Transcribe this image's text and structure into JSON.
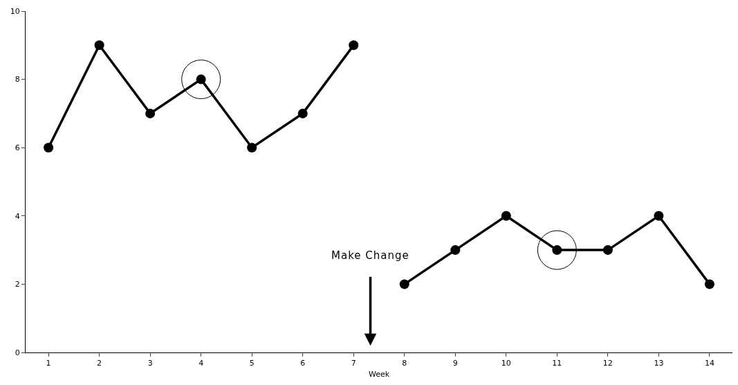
{
  "chart_data": {
    "type": "line",
    "xlabel": "Week",
    "categories": [
      "1",
      "2",
      "3",
      "4",
      "5",
      "6",
      "7",
      "8",
      "9",
      "10",
      "11",
      "12",
      "13",
      "14"
    ],
    "series": [
      {
        "color": "#000000",
        "values": [
          6,
          9,
          7,
          8,
          6,
          7,
          9,
          null,
          null,
          null,
          null,
          null,
          null,
          null
        ]
      },
      {
        "color": "#000000",
        "values": [
          null,
          null,
          null,
          null,
          null,
          null,
          null,
          2,
          3,
          4,
          3,
          3,
          4,
          2
        ]
      },
      {
        "type": "scatter",
        "marker": "circle-open",
        "color": "#000000",
        "values": [
          null,
          null,
          null,
          8,
          null,
          null,
          null,
          null,
          null,
          null,
          3,
          null,
          null,
          null
        ]
      }
    ],
    "ylim": [
      0,
      10
    ],
    "yticks": [
      0,
      2,
      4,
      6,
      8,
      10
    ],
    "grid": false,
    "marker": "circle",
    "line_style": "solid",
    "annotations": [
      "Make Change"
    ]
  }
}
